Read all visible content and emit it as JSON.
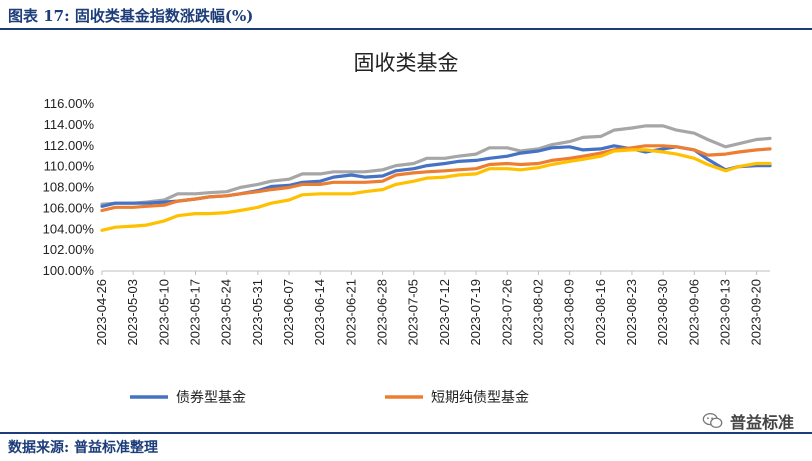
{
  "figure_title": "图表 17:   固收类基金指数涨跌幅(%)",
  "source": "数据来源:  普益标准整理",
  "watermark": "普益标准",
  "chart_data": {
    "type": "line",
    "title": "固收类基金",
    "xlabel": "",
    "ylabel": "",
    "ylim": [
      100,
      116
    ],
    "yticks": [
      "116.00%",
      "114.00%",
      "112.00%",
      "110.00%",
      "108.00%",
      "106.00%",
      "104.00%",
      "102.00%",
      "100.00%"
    ],
    "ytick_values": [
      116,
      114,
      112,
      110,
      108,
      106,
      104,
      102,
      100
    ],
    "xtick_labels": [
      "2023-04-26",
      "2023-05-03",
      "2023-05-10",
      "2023-05-17",
      "2023-05-24",
      "2023-05-31",
      "2023-06-07",
      "2023-06-14",
      "2023-06-21",
      "2023-06-28",
      "2023-07-05",
      "2023-07-12",
      "2023-07-19",
      "2023-07-26",
      "2023-08-02",
      "2023-08-09",
      "2023-08-16",
      "2023-08-23",
      "2023-08-30",
      "2023-09-06",
      "2023-09-13",
      "2023-09-20"
    ],
    "x": [
      "2023-04-26",
      "2023-04-29",
      "2023-05-03",
      "2023-05-06",
      "2023-05-10",
      "2023-05-13",
      "2023-05-17",
      "2023-05-20",
      "2023-05-24",
      "2023-05-27",
      "2023-05-31",
      "2023-06-03",
      "2023-06-07",
      "2023-06-10",
      "2023-06-14",
      "2023-06-17",
      "2023-06-21",
      "2023-06-24",
      "2023-06-28",
      "2023-07-01",
      "2023-07-05",
      "2023-07-08",
      "2023-07-12",
      "2023-07-15",
      "2023-07-19",
      "2023-07-22",
      "2023-07-26",
      "2023-07-29",
      "2023-08-02",
      "2023-08-05",
      "2023-08-09",
      "2023-08-12",
      "2023-08-16",
      "2023-08-19",
      "2023-08-23",
      "2023-08-26",
      "2023-08-30",
      "2023-09-02",
      "2023-09-06",
      "2023-09-09",
      "2023-09-13",
      "2023-09-16",
      "2023-09-20",
      "2023-09-23"
    ],
    "series": [
      {
        "name": "",
        "color": "#a6a6a6",
        "values": [
          106.4,
          106.5,
          106.5,
          106.6,
          106.8,
          107.4,
          107.4,
          107.5,
          107.6,
          108.0,
          108.3,
          108.6,
          108.8,
          109.3,
          109.3,
          109.5,
          109.5,
          109.5,
          109.7,
          110.1,
          110.3,
          110.8,
          110.8,
          111.0,
          111.2,
          111.8,
          111.8,
          111.5,
          111.7,
          112.1,
          112.4,
          112.8,
          112.9,
          113.5,
          113.7,
          113.9,
          113.9,
          113.5,
          113.2,
          112.6,
          111.9,
          112.2,
          112.6,
          112.7
        ]
      },
      {
        "name": "债券型基金",
        "color": "#4472c4",
        "values": [
          106.2,
          106.5,
          106.5,
          106.5,
          106.6,
          106.7,
          106.9,
          107.1,
          107.2,
          107.4,
          107.7,
          108.1,
          108.2,
          108.5,
          108.6,
          109.0,
          109.2,
          109.0,
          109.1,
          109.6,
          109.8,
          110.1,
          110.3,
          110.5,
          110.6,
          110.8,
          111.0,
          111.3,
          111.5,
          111.8,
          111.9,
          111.6,
          111.7,
          112.0,
          111.7,
          111.4,
          111.7,
          111.9,
          111.6,
          110.7,
          109.7,
          110.0,
          110.1,
          110.1
        ]
      },
      {
        "name": "短期纯债型基金",
        "color": "#ed7d31",
        "values": [
          105.8,
          106.1,
          106.1,
          106.2,
          106.3,
          106.7,
          106.9,
          107.1,
          107.2,
          107.4,
          107.6,
          107.8,
          108.0,
          108.3,
          108.3,
          108.5,
          108.5,
          108.5,
          108.6,
          109.2,
          109.4,
          109.5,
          109.6,
          109.7,
          109.8,
          110.2,
          110.3,
          110.2,
          110.3,
          110.6,
          110.8,
          111.0,
          111.3,
          111.6,
          111.8,
          112.0,
          112.0,
          111.9,
          111.6,
          111.1,
          111.2,
          111.4,
          111.6,
          111.7
        ]
      },
      {
        "name": "",
        "color": "#ffc000",
        "values": [
          103.9,
          104.2,
          104.3,
          104.4,
          104.8,
          105.3,
          105.5,
          105.5,
          105.6,
          105.8,
          106.1,
          106.5,
          106.8,
          107.3,
          107.4,
          107.4,
          107.4,
          107.6,
          107.8,
          108.3,
          108.6,
          108.9,
          109.0,
          109.2,
          109.3,
          109.8,
          109.8,
          109.7,
          109.9,
          110.2,
          110.5,
          110.7,
          111.0,
          111.5,
          111.6,
          111.6,
          111.4,
          111.2,
          110.8,
          110.2,
          109.6,
          110.0,
          110.3,
          110.3
        ]
      }
    ],
    "legend": [
      "债券型基金",
      "短期纯债型基金"
    ],
    "legend_position": "bottom",
    "grid": false
  }
}
